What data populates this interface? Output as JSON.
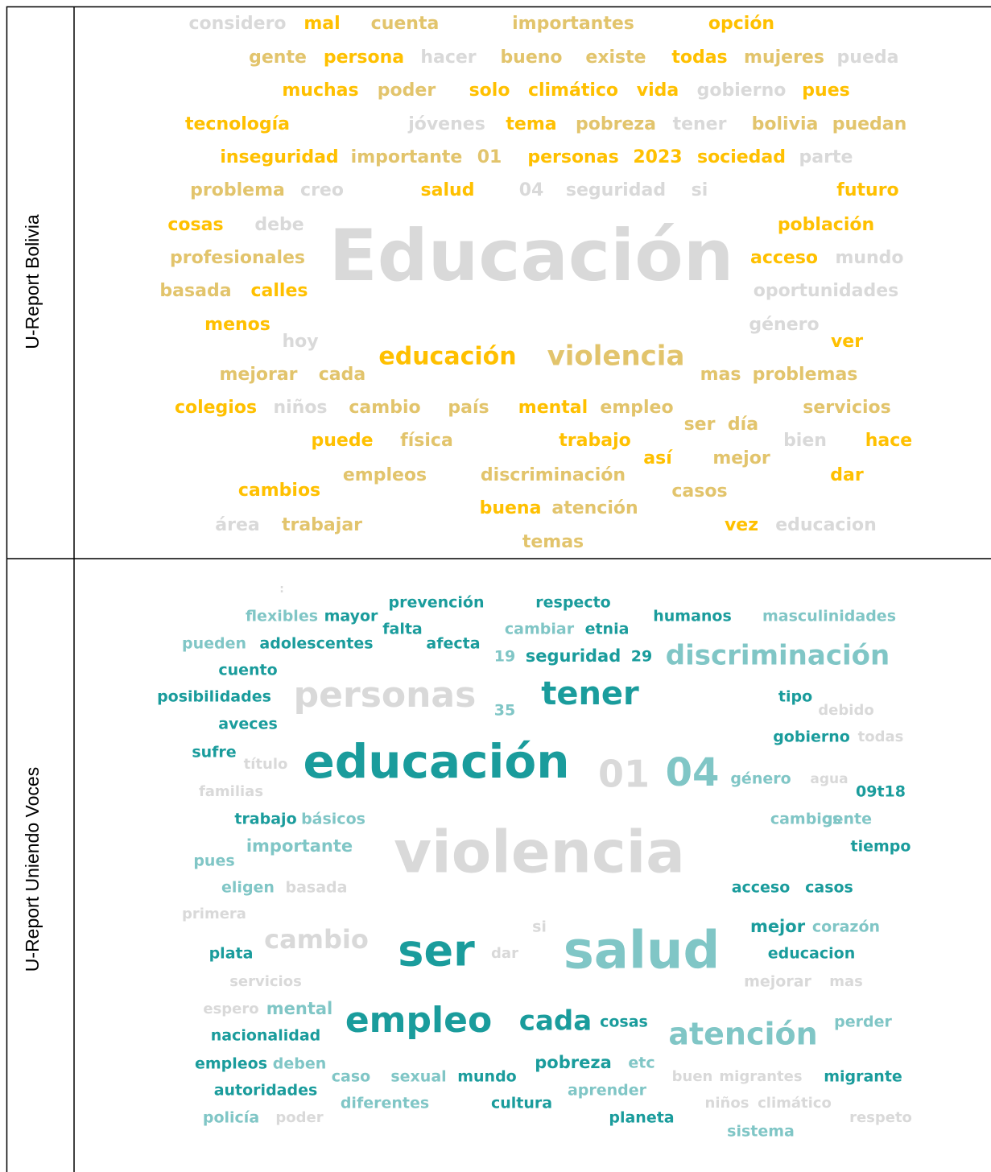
{
  "rows": [
    {
      "label": "U-Report Bolivia",
      "words": [
        {
          "text": "considero",
          "color": "#d9d9d9"
        },
        {
          "text": "mal",
          "color": "#ffc000"
        },
        {
          "text": "cuenta",
          "color": "#e2c46c"
        },
        {
          "text": "importantes",
          "color": "#e2c46c"
        },
        {
          "text": "opción",
          "color": "#ffc000"
        },
        {
          "text": "gente",
          "color": "#e2c46c"
        },
        {
          "text": "persona",
          "color": "#ffc000"
        },
        {
          "text": "hacer",
          "color": "#d9d9d9"
        },
        {
          "text": "bueno",
          "color": "#e2c46c"
        },
        {
          "text": "existe",
          "color": "#e2c46c"
        },
        {
          "text": "todas",
          "color": "#ffc000"
        },
        {
          "text": "mujeres",
          "color": "#e2c46c"
        },
        {
          "text": "pueda",
          "color": "#d9d9d9"
        },
        {
          "text": "muchas",
          "color": "#ffc000"
        },
        {
          "text": "poder",
          "color": "#e2c46c"
        },
        {
          "text": "solo",
          "color": "#ffc000"
        },
        {
          "text": "climático",
          "color": "#ffc000"
        },
        {
          "text": "vida",
          "color": "#ffc000"
        },
        {
          "text": "gobierno",
          "color": "#d9d9d9"
        },
        {
          "text": "pues",
          "color": "#ffc000"
        },
        {
          "text": "tecnología",
          "color": "#ffc000"
        },
        {
          "text": "jóvenes",
          "color": "#d9d9d9"
        },
        {
          "text": "tema",
          "color": "#ffc000"
        },
        {
          "text": "pobreza",
          "color": "#e2c46c"
        },
        {
          "text": "tener",
          "color": "#d9d9d9"
        },
        {
          "text": "bolivia",
          "color": "#e2c46c"
        },
        {
          "text": "puedan",
          "color": "#e2c46c"
        },
        {
          "text": "inseguridad",
          "color": "#ffc000"
        },
        {
          "text": "importante",
          "color": "#e2c46c"
        },
        {
          "text": "01",
          "color": "#e2c46c"
        },
        {
          "text": "personas",
          "color": "#ffc000"
        },
        {
          "text": "2023",
          "color": "#ffc000"
        },
        {
          "text": "sociedad",
          "color": "#ffc000"
        },
        {
          "text": "parte",
          "color": "#d9d9d9"
        },
        {
          "text": "problema",
          "color": "#e2c46c"
        },
        {
          "text": "creo",
          "color": "#d9d9d9"
        },
        {
          "text": "salud",
          "color": "#ffc000"
        },
        {
          "text": "04",
          "color": "#d9d9d9"
        },
        {
          "text": "seguridad",
          "color": "#d9d9d9"
        },
        {
          "text": "si",
          "color": "#d9d9d9"
        },
        {
          "text": "futuro",
          "color": "#ffc000"
        },
        {
          "text": "cosas",
          "color": "#ffc000"
        },
        {
          "text": "debe",
          "color": "#d9d9d9"
        },
        {
          "text": "población",
          "color": "#ffc000"
        },
        {
          "text": "profesionales",
          "color": "#e2c46c"
        },
        {
          "text": "acceso",
          "color": "#ffc000"
        },
        {
          "text": "mundo",
          "color": "#d9d9d9"
        },
        {
          "text": "Educación",
          "color": "#d9d9d9"
        },
        {
          "text": "basada",
          "color": "#e2c46c"
        },
        {
          "text": "calles",
          "color": "#ffc000"
        },
        {
          "text": "oportunidades",
          "color": "#d9d9d9"
        },
        {
          "text": "menos",
          "color": "#ffc000"
        },
        {
          "text": "género",
          "color": "#d9d9d9"
        },
        {
          "text": "hoy",
          "color": "#d9d9d9"
        },
        {
          "text": "ver",
          "color": "#ffc000"
        },
        {
          "text": "educación",
          "color": "#ffc000"
        },
        {
          "text": "violencia",
          "color": "#e2c46c"
        },
        {
          "text": "mejorar",
          "color": "#e2c46c"
        },
        {
          "text": "cada",
          "color": "#e2c46c"
        },
        {
          "text": "mas",
          "color": "#e2c46c"
        },
        {
          "text": "problemas",
          "color": "#e2c46c"
        },
        {
          "text": "colegios",
          "color": "#ffc000"
        },
        {
          "text": "niños",
          "color": "#d9d9d9"
        },
        {
          "text": "cambio",
          "color": "#e2c46c"
        },
        {
          "text": "país",
          "color": "#e2c46c"
        },
        {
          "text": "mental",
          "color": "#ffc000"
        },
        {
          "text": "empleo",
          "color": "#e2c46c"
        },
        {
          "text": "servicios",
          "color": "#e2c46c"
        },
        {
          "text": "ser",
          "color": "#e2c46c"
        },
        {
          "text": "día",
          "color": "#e2c46c"
        },
        {
          "text": "puede",
          "color": "#ffc000"
        },
        {
          "text": "física",
          "color": "#e2c46c"
        },
        {
          "text": "trabajo",
          "color": "#ffc000"
        },
        {
          "text": "bien",
          "color": "#d9d9d9"
        },
        {
          "text": "hace",
          "color": "#ffc000"
        },
        {
          "text": "así",
          "color": "#ffc000"
        },
        {
          "text": "mejor",
          "color": "#e2c46c"
        },
        {
          "text": "cambios",
          "color": "#ffc000"
        },
        {
          "text": "empleos",
          "color": "#e2c46c"
        },
        {
          "text": "discriminación",
          "color": "#e2c46c"
        },
        {
          "text": "dar",
          "color": "#ffc000"
        },
        {
          "text": "casos",
          "color": "#e2c46c"
        },
        {
          "text": "buena",
          "color": "#ffc000"
        },
        {
          "text": "atención",
          "color": "#e2c46c"
        },
        {
          "text": "área",
          "color": "#d9d9d9"
        },
        {
          "text": "trabajar",
          "color": "#e2c46c"
        },
        {
          "text": "vez",
          "color": "#ffc000"
        },
        {
          "text": "educacion",
          "color": "#d9d9d9"
        },
        {
          "text": "temas",
          "color": "#e2c46c"
        }
      ]
    },
    {
      "label": "U-Report Uniendo Voces",
      "words": [
        {
          "text": ":",
          "color": "#d9d9d9"
        },
        {
          "text": "prevención",
          "color": "#1a9c9c"
        },
        {
          "text": "respecto",
          "color": "#1a9c9c"
        },
        {
          "text": "flexibles",
          "color": "#80c6c6"
        },
        {
          "text": "mayor",
          "color": "#1a9c9c"
        },
        {
          "text": "humanos",
          "color": "#1a9c9c"
        },
        {
          "text": "masculinidades",
          "color": "#80c6c6"
        },
        {
          "text": "falta",
          "color": "#1a9c9c"
        },
        {
          "text": "cambiar",
          "color": "#80c6c6"
        },
        {
          "text": "etnia",
          "color": "#1a9c9c"
        },
        {
          "text": "pueden",
          "color": "#80c6c6"
        },
        {
          "text": "adolescentes",
          "color": "#1a9c9c"
        },
        {
          "text": "afecta",
          "color": "#1a9c9c"
        },
        {
          "text": "19",
          "color": "#80c6c6"
        },
        {
          "text": "seguridad",
          "color": "#1a9c9c"
        },
        {
          "text": "29",
          "color": "#1a9c9c"
        },
        {
          "text": "discriminación",
          "color": "#80c6c6"
        },
        {
          "text": "cuento",
          "color": "#1a9c9c"
        },
        {
          "text": "posibilidades",
          "color": "#1a9c9c"
        },
        {
          "text": "personas",
          "color": "#d9d9d9"
        },
        {
          "text": "tener",
          "color": "#1a9c9c"
        },
        {
          "text": "tipo",
          "color": "#1a9c9c"
        },
        {
          "text": "35",
          "color": "#80c6c6"
        },
        {
          "text": "debido",
          "color": "#d9d9d9"
        },
        {
          "text": "aveces",
          "color": "#1a9c9c"
        },
        {
          "text": "gobierno",
          "color": "#1a9c9c"
        },
        {
          "text": "todas",
          "color": "#d9d9d9"
        },
        {
          "text": "sufre",
          "color": "#1a9c9c"
        },
        {
          "text": "título",
          "color": "#d9d9d9"
        },
        {
          "text": "educación",
          "color": "#1a9c9c"
        },
        {
          "text": "01",
          "color": "#d9d9d9"
        },
        {
          "text": "04",
          "color": "#80c6c6"
        },
        {
          "text": "género",
          "color": "#80c6c6"
        },
        {
          "text": "agua",
          "color": "#d9d9d9"
        },
        {
          "text": "familias",
          "color": "#d9d9d9"
        },
        {
          "text": "09t18",
          "color": "#1a9c9c"
        },
        {
          "text": "trabajo",
          "color": "#1a9c9c"
        },
        {
          "text": "básicos",
          "color": "#80c6c6"
        },
        {
          "text": "cambios",
          "color": "#80c6c6"
        },
        {
          "text": "gente",
          "color": "#80c6c6"
        },
        {
          "text": "importante",
          "color": "#80c6c6"
        },
        {
          "text": "tiempo",
          "color": "#1a9c9c"
        },
        {
          "text": "violencia",
          "color": "#d9d9d9"
        },
        {
          "text": "pues",
          "color": "#80c6c6"
        },
        {
          "text": "eligen",
          "color": "#80c6c6"
        },
        {
          "text": "basada",
          "color": "#d9d9d9"
        },
        {
          "text": "acceso",
          "color": "#1a9c9c"
        },
        {
          "text": "casos",
          "color": "#1a9c9c"
        },
        {
          "text": "primera",
          "color": "#d9d9d9"
        },
        {
          "text": "si",
          "color": "#d9d9d9"
        },
        {
          "text": "mejor",
          "color": "#1a9c9c"
        },
        {
          "text": "corazón",
          "color": "#80c6c6"
        },
        {
          "text": "cambio",
          "color": "#d9d9d9"
        },
        {
          "text": "plata",
          "color": "#1a9c9c"
        },
        {
          "text": "ser",
          "color": "#1a9c9c"
        },
        {
          "text": "dar",
          "color": "#d9d9d9"
        },
        {
          "text": "salud",
          "color": "#80c6c6"
        },
        {
          "text": "educacion",
          "color": "#1a9c9c"
        },
        {
          "text": "servicios",
          "color": "#d9d9d9"
        },
        {
          "text": "mejorar",
          "color": "#d9d9d9"
        },
        {
          "text": "mas",
          "color": "#d9d9d9"
        },
        {
          "text": "espero",
          "color": "#d9d9d9"
        },
        {
          "text": "mental",
          "color": "#80c6c6"
        },
        {
          "text": "empleo",
          "color": "#1a9c9c"
        },
        {
          "text": "cada",
          "color": "#1a9c9c"
        },
        {
          "text": "cosas",
          "color": "#1a9c9c"
        },
        {
          "text": "perder",
          "color": "#80c6c6"
        },
        {
          "text": "nacionalidad",
          "color": "#1a9c9c"
        },
        {
          "text": "atención",
          "color": "#80c6c6"
        },
        {
          "text": "pobreza",
          "color": "#1a9c9c"
        },
        {
          "text": "etc",
          "color": "#80c6c6"
        },
        {
          "text": "empleos",
          "color": "#1a9c9c"
        },
        {
          "text": "deben",
          "color": "#80c6c6"
        },
        {
          "text": "caso",
          "color": "#80c6c6"
        },
        {
          "text": "sexual",
          "color": "#80c6c6"
        },
        {
          "text": "mundo",
          "color": "#1a9c9c"
        },
        {
          "text": "buen",
          "color": "#d9d9d9"
        },
        {
          "text": "migrantes",
          "color": "#d9d9d9"
        },
        {
          "text": "migrante",
          "color": "#1a9c9c"
        },
        {
          "text": "autoridades",
          "color": "#1a9c9c"
        },
        {
          "text": "aprender",
          "color": "#80c6c6"
        },
        {
          "text": "diferentes",
          "color": "#80c6c6"
        },
        {
          "text": "cultura",
          "color": "#1a9c9c"
        },
        {
          "text": "niños",
          "color": "#d9d9d9"
        },
        {
          "text": "climático",
          "color": "#d9d9d9"
        },
        {
          "text": "policía",
          "color": "#80c6c6"
        },
        {
          "text": "poder",
          "color": "#d9d9d9"
        },
        {
          "text": "planeta",
          "color": "#1a9c9c"
        },
        {
          "text": "respeto",
          "color": "#d9d9d9"
        },
        {
          "text": "sistema",
          "color": "#80c6c6"
        }
      ]
    }
  ]
}
